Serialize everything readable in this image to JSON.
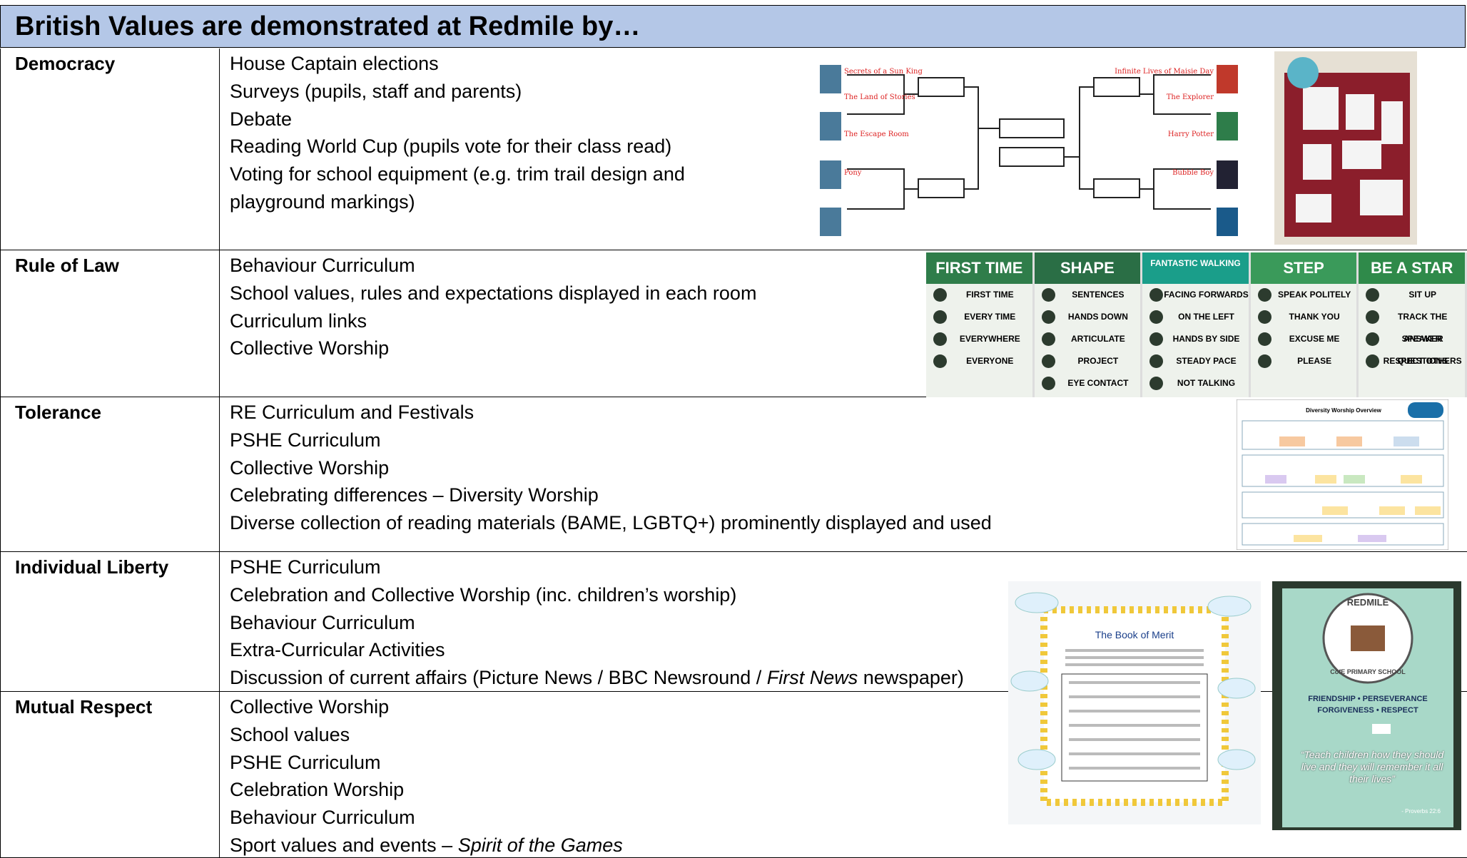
{
  "title": "British Values are demonstrated at Redmile by…",
  "rows": [
    {
      "label": "Democracy",
      "items": [
        [
          {
            "text": "House Captain elections"
          }
        ],
        [
          {
            "text": "Surveys (pupils, staff and parents)"
          }
        ],
        [
          {
            "text": "Debate"
          }
        ],
        [
          {
            "text": "Reading World Cup (pupils vote for their class read)"
          }
        ],
        [
          {
            "text": "Voting for school equipment (e.g. trim trail design and"
          }
        ],
        [
          {
            "text": "playground markings)"
          }
        ]
      ]
    },
    {
      "label": "Rule of Law",
      "items": [
        [
          {
            "text": "Behaviour Curriculum"
          }
        ],
        [
          {
            "text": "School values, rules and expectations displayed in each room"
          }
        ],
        [
          {
            "text": "Curriculum links"
          }
        ],
        [
          {
            "text": "Collective Worship"
          }
        ]
      ]
    },
    {
      "label": "Tolerance",
      "items": [
        [
          {
            "text": "RE Curriculum and Festivals"
          }
        ],
        [
          {
            "text": "PSHE Curriculum"
          }
        ],
        [
          {
            "text": "Collective Worship"
          }
        ],
        [
          {
            "text": "Celebrating differences – Diversity Worship"
          }
        ],
        [
          {
            "text": "Diverse collection of reading materials (BAME, LGBTQ+) prominently displayed and used"
          }
        ]
      ]
    },
    {
      "label": "Individual Liberty",
      "items": [
        [
          {
            "text": "PSHE Curriculum"
          }
        ],
        [
          {
            "text": "Celebration and Collective Worship (inc. children’s worship)"
          }
        ],
        [
          {
            "text": "Behaviour Curriculum"
          }
        ],
        [
          {
            "text": "Extra-Curricular Activities"
          }
        ],
        [
          {
            "text": "Discussion of current affairs (Picture News / BBC Newsround / "
          },
          {
            "text": "First News",
            "italic": true
          },
          {
            "text": " newspaper)"
          }
        ]
      ]
    },
    {
      "label": "Mutual Respect",
      "items": [
        [
          {
            "text": "Collective Worship"
          }
        ],
        [
          {
            "text": "School values"
          }
        ],
        [
          {
            "text": "PSHE Curriculum"
          }
        ],
        [
          {
            "text": "Celebration Worship"
          }
        ],
        [
          {
            "text": "Behaviour Curriculum"
          }
        ],
        [
          {
            "text": "Sport values and events – "
          },
          {
            "text": "Spirit of the Games",
            "italic": true
          }
        ]
      ]
    }
  ],
  "bracket": {
    "left": [
      "Secrets of a Sun King",
      "The Land of Stories",
      "The Escape Room",
      "Pony"
    ],
    "right": [
      "Infinite Lives of Maisie Day",
      "The Explorer",
      "Harry Potter",
      "Bubble Boy"
    ]
  },
  "posters": [
    {
      "heading": "FIRST TIME",
      "items": [
        "FIRST TIME",
        "EVERY TIME",
        "EVERYWHERE",
        "EVERYONE"
      ]
    },
    {
      "heading": "SHAPE",
      "items": [
        "SENTENCES",
        "HANDS DOWN",
        "ARTICULATE",
        "PROJECT",
        "EYE CONTACT"
      ]
    },
    {
      "heading": "FANTASTIC WALKING",
      "items": [
        "FACING FORWARDS",
        "ON THE LEFT",
        "HANDS BY SIDE",
        "STEADY PACE",
        "NOT TALKING"
      ]
    },
    {
      "heading": "STEP",
      "items": [
        "SPEAK POLITELY",
        "THANK YOU",
        "EXCUSE ME",
        "PLEASE"
      ]
    },
    {
      "heading": "BE A STAR",
      "items": [
        "SIT UP",
        "TRACK THE SPEAKER",
        "ANSWER QUESTIONS",
        "RESPECT OTHERS"
      ]
    }
  ],
  "overview_title": "Diversity Worship Overview",
  "merit_title": "The Book of Merit",
  "sign": {
    "name": "REDMILE",
    "school": "CofE PRIMARY SCHOOL",
    "values1": "FRIENDSHIP • PERSEVERANCE",
    "values2": "FORGIVENESS • RESPECT",
    "quote": "“Teach children how they should live and they will remember it all their lives”",
    "ref": "- Proverbs 22:6"
  }
}
